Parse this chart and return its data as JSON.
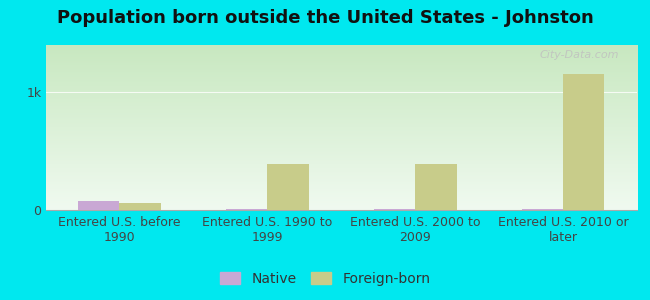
{
  "title": "Population born outside the United States - Johnston",
  "categories": [
    "Entered U.S. before\n1990",
    "Entered U.S. 1990 to\n1999",
    "Entered U.S. 2000 to\n2009",
    "Entered U.S. 2010 or\nlater"
  ],
  "native_values": [
    75,
    5,
    5,
    5
  ],
  "foreign_values": [
    60,
    390,
    390,
    1150
  ],
  "native_color": "#c9a8d4",
  "foreign_color": "#c8cc8a",
  "bar_width": 0.28,
  "ylim": [
    0,
    1400
  ],
  "yticks": [
    0,
    1000
  ],
  "ytick_labels": [
    "0",
    "1k"
  ],
  "outer_bg": "#00e8ef",
  "plot_bg_top": "#c8e8c0",
  "plot_bg_bottom": "#f0faf0",
  "title_fontsize": 13,
  "tick_fontsize": 9,
  "legend_fontsize": 10,
  "watermark_text": "City-Data.com"
}
